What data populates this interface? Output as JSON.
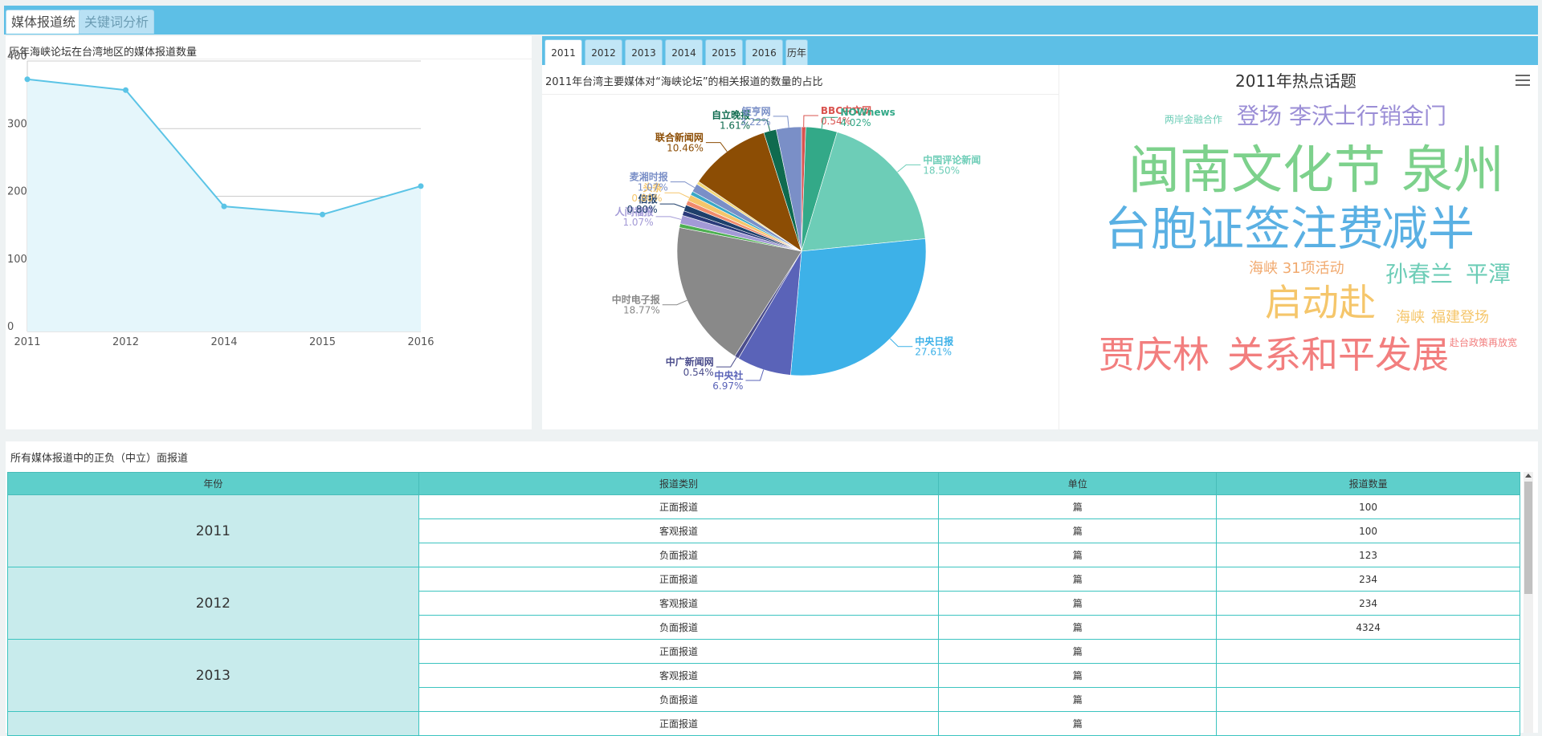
{
  "tabs": {
    "active": "媒体报道统",
    "inactive": "关键词分析"
  },
  "line_panel": {
    "title": "历年海峡论坛在台湾地区的媒体报道数量"
  },
  "chart_data": [
    {
      "type": "area",
      "x": [
        "2011",
        "2012",
        "2014",
        "2015",
        "2016"
      ],
      "values": [
        373,
        357,
        185,
        173,
        215
      ],
      "ylim": [
        0,
        400
      ],
      "yticks": [
        "0",
        "100",
        "200",
        "300",
        "400"
      ],
      "colors": {
        "line": "#5bc4e6",
        "fill": "#e5f6fb"
      }
    },
    {
      "type": "pie",
      "title": "2011年台湾主要媒体对“海峡论坛”的相关报道的数量的占比",
      "slices": [
        {
          "label": "BBC中文网",
          "pct": "0.54%",
          "value": 0.54,
          "color": "#d9534f"
        },
        {
          "label": "NOWnews",
          "pct": "4.02%",
          "value": 4.02,
          "color": "#33a988"
        },
        {
          "label": "中国评论新闻",
          "pct": "18.50%",
          "value": 18.5,
          "color": "#6dcdb7"
        },
        {
          "label": "中央日报",
          "pct": "27.61%",
          "value": 27.61,
          "color": "#3db1e8"
        },
        {
          "label": "中央社",
          "pct": "6.97%",
          "value": 6.97,
          "color": "#5a63b8"
        },
        {
          "label": "中广新闻网",
          "pct": "0.54%",
          "value": 0.54,
          "color": "#4b4d8c"
        },
        {
          "label": "中时电子报",
          "pct": "18.77%",
          "value": 18.77,
          "color": "#898989"
        },
        {
          "label": "",
          "pct": "",
          "value": 0.5,
          "color": "#4caf50"
        },
        {
          "label": "人间福报",
          "pct": "1.07%",
          "value": 1.07,
          "color": "#a39ad6"
        },
        {
          "label": "",
          "pct": "",
          "value": 0.6,
          "color": "#2a3a7a"
        },
        {
          "label": "信报",
          "pct": "0.80%",
          "value": 0.8,
          "color": "#1e3f6b"
        },
        {
          "label": "",
          "pct": "",
          "value": 0.6,
          "color": "#f08a6c"
        },
        {
          "label": "头条",
          "pct": "0.80%",
          "value": 0.8,
          "color": "#f5c66b"
        },
        {
          "label": "",
          "pct": "",
          "value": 0.5,
          "color": "#39a8c6"
        },
        {
          "label": "麦湘时报",
          "pct": "1.07%",
          "value": 1.07,
          "color": "#7a8fc7"
        },
        {
          "label": "",
          "pct": "",
          "value": 0.4,
          "color": "#f3d97a"
        },
        {
          "label": "联合新闻网",
          "pct": "10.46%",
          "value": 10.46,
          "color": "#8c4d04"
        },
        {
          "label": "自立晚报",
          "pct": "1.61%",
          "value": 1.61,
          "color": "#0f6b4f"
        },
        {
          "label": "钜亨网",
          "pct": "3.22%",
          "value": 3.22,
          "color": "#7a8fc7"
        }
      ]
    }
  ],
  "year_tabs": [
    "2011",
    "2012",
    "2013",
    "2014",
    "2015",
    "2016",
    "历年"
  ],
  "wordcloud": {
    "title": "2011年热点话题",
    "words": [
      {
        "text": "两岸金融合作",
        "color": "#6dcdb7"
      },
      {
        "text": "登场",
        "color": "#9b8ed6"
      },
      {
        "text": "李沃士行销金门",
        "color": "#9b8ed6"
      },
      {
        "text": "闽南文化节",
        "color": "#7dd18c"
      },
      {
        "text": "泉州",
        "color": "#7dd18c"
      },
      {
        "text": "台胞证签注费",
        "color": "#5ab0e3"
      },
      {
        "text": "减半",
        "color": "#5ab0e3"
      },
      {
        "text": "海峡 31项活动",
        "color": "#f1a96e"
      },
      {
        "text": "孙春兰",
        "color": "#6dcdb7"
      },
      {
        "text": "平潭",
        "color": "#6dcdb7"
      },
      {
        "text": "启动赴",
        "color": "#f5c66b"
      },
      {
        "text": "海峡",
        "color": "#f5c66b"
      },
      {
        "text": "福建登场",
        "color": "#f5c66b"
      },
      {
        "text": "贾庆林",
        "color": "#f27e7e"
      },
      {
        "text": "关系和平发展",
        "color": "#f27e7e"
      },
      {
        "text": "赴台政策再放宽",
        "color": "#f27e7e"
      }
    ]
  },
  "table": {
    "title": "所有媒体报道中的正负（中立）面报道",
    "headers": [
      "年份",
      "报道类别",
      "单位",
      "报道数量"
    ],
    "groups": [
      {
        "year": "2011",
        "rows": [
          [
            "正面报道",
            "篇",
            "100"
          ],
          [
            "客观报道",
            "篇",
            "100"
          ],
          [
            "负面报道",
            "篇",
            "123"
          ]
        ]
      },
      {
        "year": "2012",
        "rows": [
          [
            "正面报道",
            "篇",
            "234"
          ],
          [
            "客观报道",
            "篇",
            "234"
          ],
          [
            "负面报道",
            "篇",
            "4324"
          ]
        ]
      },
      {
        "year": "2013",
        "rows": [
          [
            "正面报道",
            "篇",
            ""
          ],
          [
            "客观报道",
            "篇",
            ""
          ],
          [
            "负面报道",
            "篇",
            ""
          ]
        ]
      },
      {
        "year": "",
        "rows": [
          [
            "正面报道",
            "篇",
            ""
          ]
        ]
      }
    ]
  }
}
